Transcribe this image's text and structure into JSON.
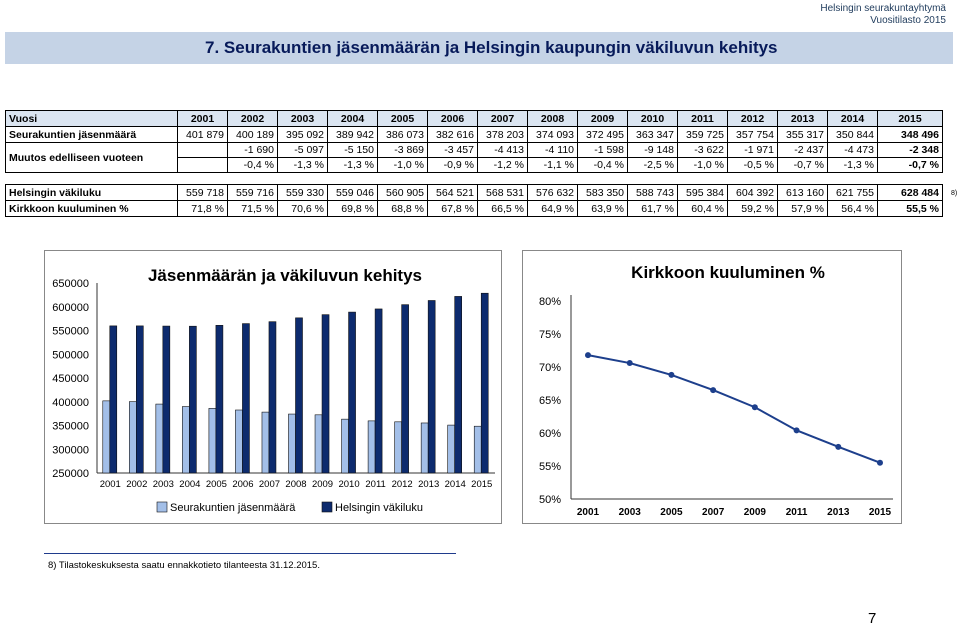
{
  "header": {
    "org": "Helsingin seurakuntayhtymä",
    "report": "Vuositilasto 2015"
  },
  "title": "7.  Seurakuntien jäsenmäärän ja Helsingin kaupungin väkiluvun kehitys",
  "table": {
    "corner": "Vuosi",
    "years": [
      "2001",
      "2002",
      "2003",
      "2004",
      "2005",
      "2006",
      "2007",
      "2008",
      "2009",
      "2010",
      "2011",
      "2012",
      "2013",
      "2014",
      "2015"
    ],
    "members_label": "Seurakuntien jäsenmäärä",
    "members": [
      "401 879",
      "400 189",
      "395 092",
      "389 942",
      "386 073",
      "382 616",
      "378 203",
      "374 093",
      "372 495",
      "363 347",
      "359 725",
      "357 754",
      "355 317",
      "350 844",
      "348 496"
    ],
    "change_label": "Muutos edelliseen vuoteen",
    "change_abs": [
      "-1 690",
      "-5 097",
      "-5 150",
      "-3 869",
      "-3 457",
      "-4 413",
      "-4 110",
      "-1 598",
      "-9 148",
      "-3 622",
      "-1 971",
      "-2 437",
      "-4 473",
      "-2 348"
    ],
    "change_pct": [
      "-0,4 %",
      "-1,3 %",
      "-1,3 %",
      "-1,0 %",
      "-0,9 %",
      "-1,2 %",
      "-1,1 %",
      "-0,4 %",
      "-2,5 %",
      "-1,0 %",
      "-0,5 %",
      "-0,7 %",
      "-1,3 %",
      "-0,7 %"
    ],
    "population_label": "Helsingin väkiluku",
    "population": [
      "559 718",
      "559 716",
      "559 330",
      "559 046",
      "560 905",
      "564 521",
      "568 531",
      "576 632",
      "583 350",
      "588 743",
      "595 384",
      "604 392",
      "613 160",
      "621 755",
      "628 484"
    ],
    "population_note": "8)",
    "share_label": "Kirkkoon kuuluminen %",
    "share": [
      "71,8 %",
      "71,5 %",
      "70,6 %",
      "69,8 %",
      "68,8 %",
      "67,8 %",
      "66,5 %",
      "64,9 %",
      "63,9 %",
      "61,7 %",
      "60,4 %",
      "59,2 %",
      "57,9 %",
      "56,4 %",
      "55,5 %"
    ]
  },
  "chart_data": [
    {
      "type": "bar",
      "title": "Jäsenmäärän ja väkiluvun kehitys",
      "categories": [
        "2001",
        "2002",
        "2003",
        "2004",
        "2005",
        "2006",
        "2007",
        "2008",
        "2009",
        "2010",
        "2011",
        "2012",
        "2013",
        "2014",
        "2015"
      ],
      "series": [
        {
          "name": "Seurakuntien jäsenmäärä",
          "color": "#a3bfe8",
          "values": [
            401879,
            400189,
            395092,
            389942,
            386073,
            382616,
            378203,
            374093,
            372495,
            363347,
            359725,
            357754,
            355317,
            350844,
            348496
          ]
        },
        {
          "name": "Helsingin väkiluku",
          "color": "#0d2b6e",
          "values": [
            559718,
            559716,
            559330,
            559046,
            560905,
            564521,
            568531,
            576632,
            583350,
            588743,
            595384,
            604392,
            613160,
            621755,
            628484
          ]
        }
      ],
      "yticks": [
        "250000",
        "300000",
        "350000",
        "400000",
        "450000",
        "500000",
        "550000",
        "600000",
        "650000"
      ],
      "ylim": [
        250000,
        650000
      ],
      "legend": "bottom"
    },
    {
      "type": "line",
      "title": "Kirkkoon kuuluminen %",
      "x": [
        2001,
        2003,
        2005,
        2007,
        2009,
        2011,
        2013,
        2015
      ],
      "xticks": [
        "2001",
        "2003",
        "2005",
        "2007",
        "2009",
        "2011",
        "2013",
        "2015"
      ],
      "series": [
        {
          "color": "#1d3f8c",
          "values": [
            71.8,
            70.6,
            68.8,
            66.5,
            63.9,
            60.4,
            57.9,
            55.5
          ]
        }
      ],
      "yticks": [
        "50%",
        "55%",
        "60%",
        "65%",
        "70%",
        "75%",
        "80%"
      ],
      "ylim": [
        50,
        80
      ]
    }
  ],
  "footnote": "8) Tilastokeskuksesta saatu ennakkotieto tilanteesta 31.12.2015.",
  "page_number": "7"
}
